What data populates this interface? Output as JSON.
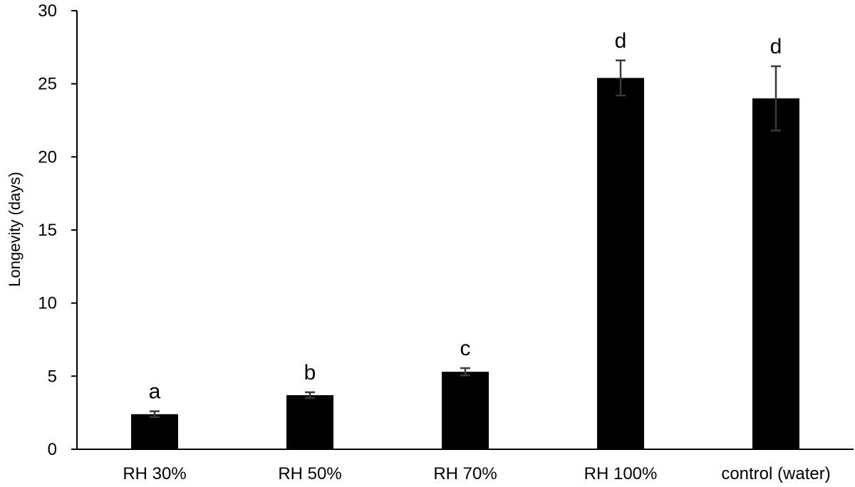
{
  "chart_data": {
    "type": "bar",
    "categories": [
      "RH 30%",
      "RH 50%",
      "RH 70%",
      "RH 100%",
      "control (water)"
    ],
    "values": [
      2.4,
      3.7,
      5.3,
      25.4,
      24.0
    ],
    "errors": [
      0.2,
      0.2,
      0.25,
      1.2,
      2.2
    ],
    "annotations": [
      "a",
      "b",
      "c",
      "d",
      "d"
    ],
    "title": "",
    "xlabel": "",
    "ylabel": "Longevity (days)",
    "ylim": [
      0,
      30
    ],
    "yticks": [
      0,
      5,
      10,
      15,
      20,
      25,
      30
    ],
    "grid": false,
    "bar_color": "#000000",
    "error_bar_color": "#3a3a3a"
  }
}
